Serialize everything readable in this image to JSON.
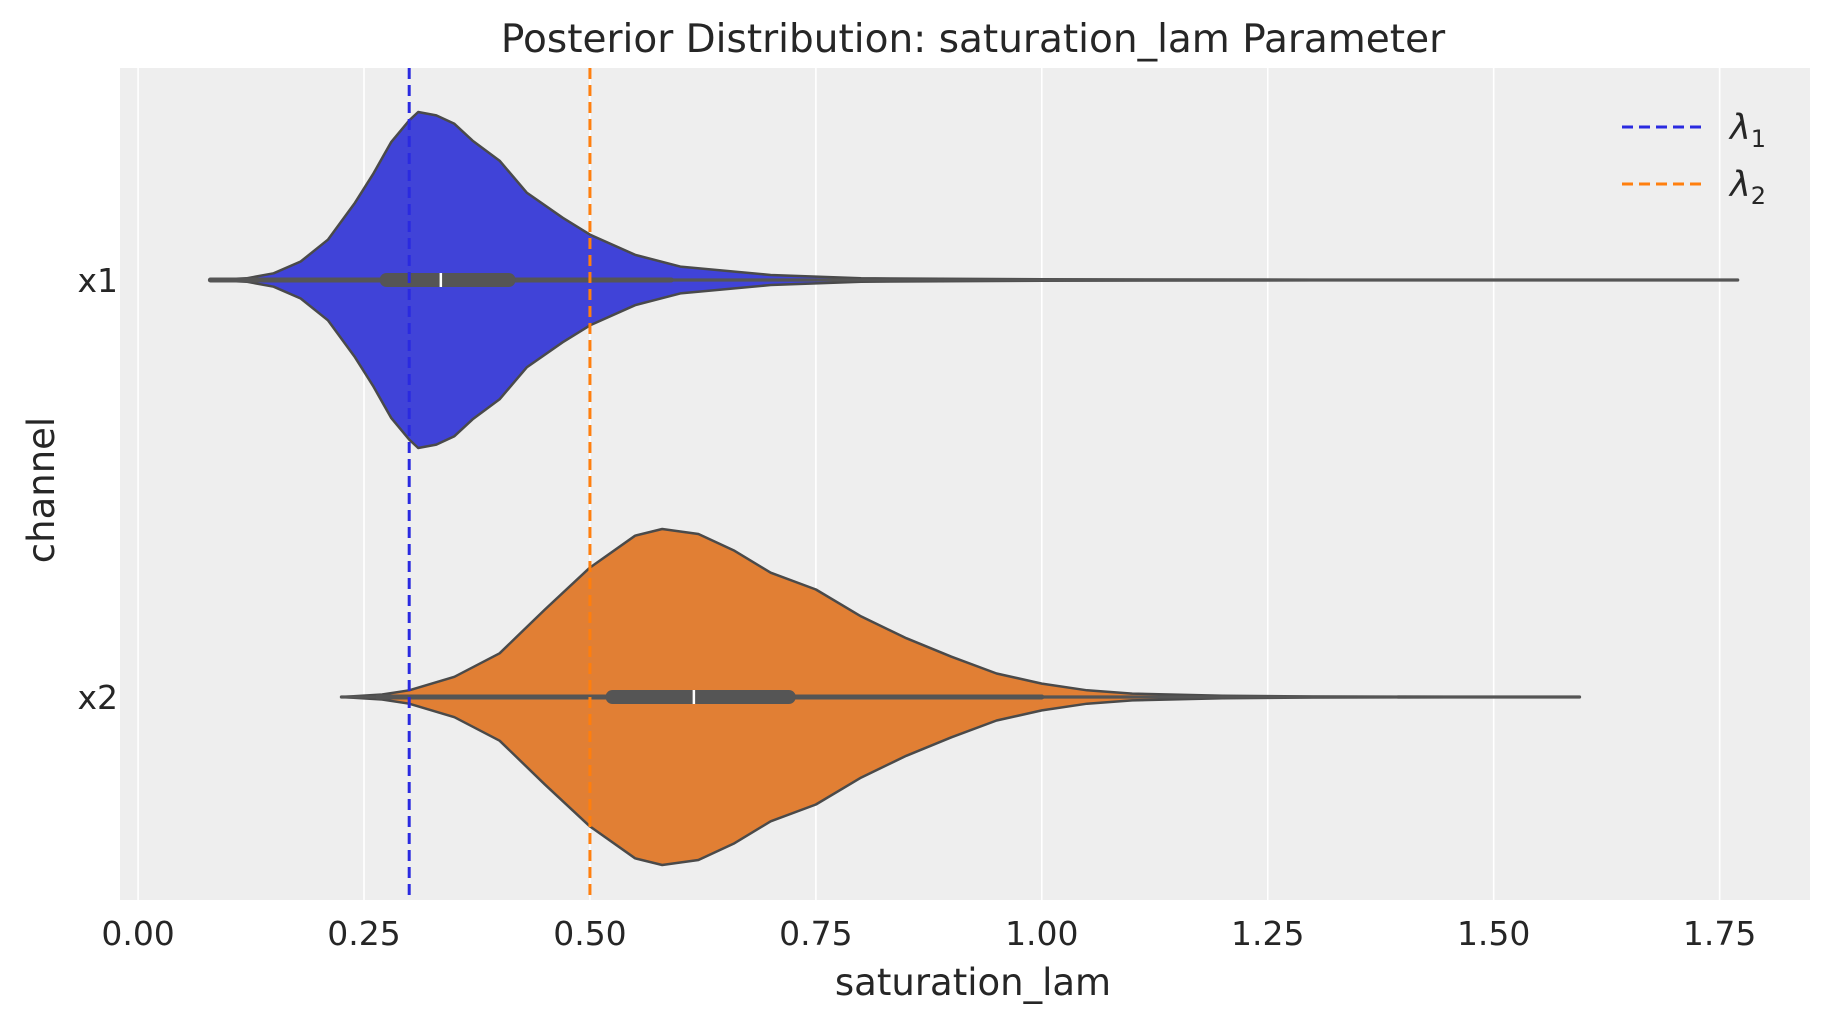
{
  "chart_data": {
    "type": "violin",
    "title": "Posterior Distribution: saturation_lam Parameter",
    "xlabel": "saturation_lam",
    "ylabel": "channel",
    "xlim": [
      -0.02,
      1.85
    ],
    "xticks": [
      "0.00",
      "0.25",
      "0.50",
      "0.75",
      "1.00",
      "1.25",
      "1.50",
      "1.75"
    ],
    "xtick_values": [
      0.0,
      0.25,
      0.5,
      0.75,
      1.0,
      1.25,
      1.5,
      1.75
    ],
    "grid": "vertical",
    "legend_position": "top-right",
    "categories": [
      "x1",
      "x2"
    ],
    "series": [
      {
        "category": "x1",
        "color": "#4043d8",
        "min": 0.08,
        "max": 1.77,
        "q1": 0.275,
        "median": 0.335,
        "q3": 0.41,
        "whisker_low": 0.08,
        "whisker_high": 0.59,
        "density": [
          [
            0.08,
            0.0
          ],
          [
            0.12,
            0.01
          ],
          [
            0.15,
            0.04
          ],
          [
            0.18,
            0.11
          ],
          [
            0.21,
            0.24
          ],
          [
            0.24,
            0.46
          ],
          [
            0.26,
            0.63
          ],
          [
            0.28,
            0.82
          ],
          [
            0.3,
            0.95
          ],
          [
            0.31,
            1.0
          ],
          [
            0.33,
            0.98
          ],
          [
            0.35,
            0.93
          ],
          [
            0.37,
            0.83
          ],
          [
            0.4,
            0.71
          ],
          [
            0.43,
            0.52
          ],
          [
            0.47,
            0.37
          ],
          [
            0.5,
            0.27
          ],
          [
            0.55,
            0.15
          ],
          [
            0.6,
            0.08
          ],
          [
            0.7,
            0.03
          ],
          [
            0.8,
            0.01
          ],
          [
            1.0,
            0.004
          ],
          [
            1.3,
            0.0015
          ],
          [
            1.77,
            0.0
          ]
        ]
      },
      {
        "category": "x2",
        "color": "#e17f34",
        "min": 0.225,
        "max": 1.595,
        "q1": 0.525,
        "median": 0.615,
        "q3": 0.72,
        "whisker_low": 0.265,
        "whisker_high": 1.0,
        "density": [
          [
            0.225,
            0.0
          ],
          [
            0.27,
            0.015
          ],
          [
            0.3,
            0.04
          ],
          [
            0.35,
            0.12
          ],
          [
            0.4,
            0.26
          ],
          [
            0.45,
            0.52
          ],
          [
            0.5,
            0.77
          ],
          [
            0.55,
            0.96
          ],
          [
            0.58,
            1.0
          ],
          [
            0.62,
            0.97
          ],
          [
            0.66,
            0.87
          ],
          [
            0.7,
            0.74
          ],
          [
            0.75,
            0.64
          ],
          [
            0.8,
            0.48
          ],
          [
            0.85,
            0.35
          ],
          [
            0.9,
            0.24
          ],
          [
            0.95,
            0.14
          ],
          [
            1.0,
            0.08
          ],
          [
            1.05,
            0.04
          ],
          [
            1.1,
            0.02
          ],
          [
            1.2,
            0.008
          ],
          [
            1.3,
            0.003
          ],
          [
            1.45,
            0.001
          ],
          [
            1.595,
            0.0
          ]
        ]
      }
    ],
    "reference_lines": [
      {
        "label_base": "λ",
        "label_sub": "1",
        "value": 0.3,
        "color": "#2a2ae0"
      },
      {
        "label_base": "λ",
        "label_sub": "2",
        "value": 0.5,
        "color": "#ff7f0e"
      }
    ]
  }
}
